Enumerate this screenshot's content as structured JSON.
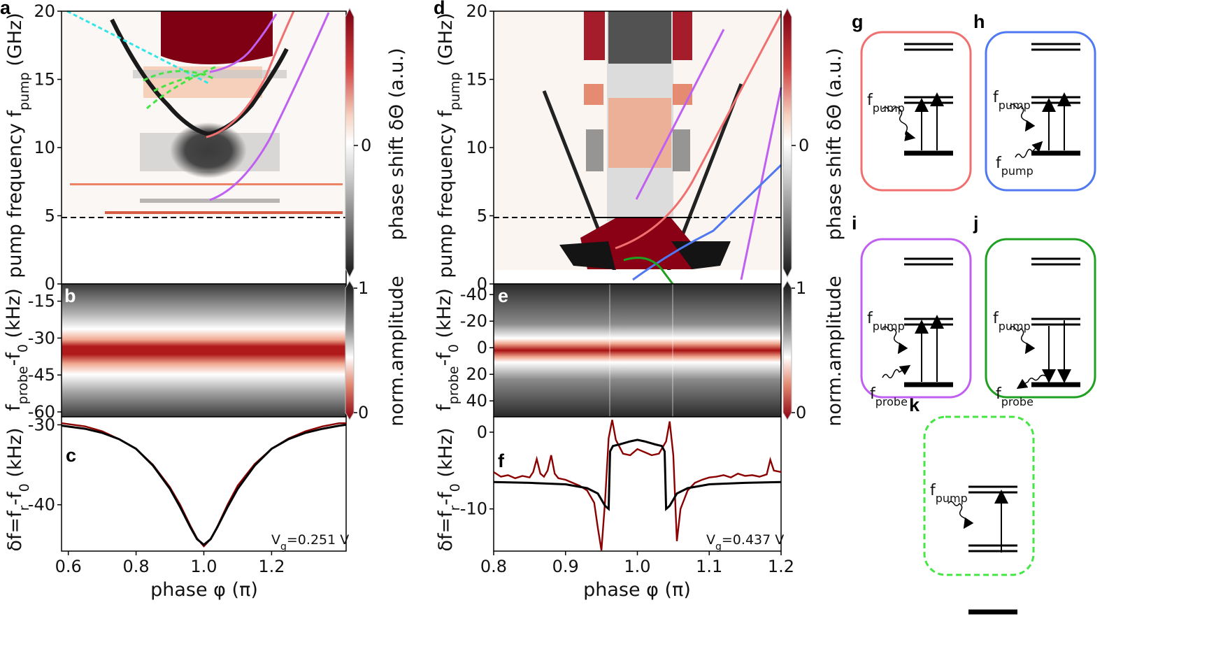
{
  "panels": {
    "a": "a",
    "b": "b",
    "c": "c",
    "d": "d",
    "e": "e",
    "f": "f",
    "g": "g",
    "h": "h",
    "i": "i",
    "j": "j",
    "k": "k"
  },
  "colorbars": {
    "phase": {
      "label": "phase shift δΘ (a.u.)",
      "tick": "0"
    },
    "amp": {
      "label": "norm.amplitude",
      "tick_top": "1",
      "tick_bottom": "0"
    }
  },
  "annotations": {
    "vg_left": "V",
    "vg_left_sub": "g",
    "vg_left_val": "=0.251 V",
    "vg_right": "V",
    "vg_right_sub": "g",
    "vg_right_val": "=0.437 V"
  },
  "axes_labels": {
    "pump_main": "pump frequency f",
    "pump_sub": "pump",
    "pump_unit": " (GHz)",
    "probe_main": "f",
    "probe_sub": "probe",
    "probe_mid": "-f",
    "probe_sub2": "0",
    "probe_unit": " (kHz)",
    "df_main": "δf=f",
    "df_sub": "r",
    "df_mid": "-f",
    "df_sub2": "0",
    "df_unit": " (kHz)",
    "phase": "phase φ (π)"
  },
  "level_labels": {
    "f": "f",
    "pump": "pump",
    "probe": "probe"
  },
  "colors": {
    "salmon": "#f07070",
    "violet": "#c060f0",
    "blue": "#5078f0",
    "green": "#20a020",
    "lime": "#44e644",
    "dark_red": "#8b0000",
    "cyan": "#33e6e6"
  },
  "chart_data": [
    {
      "panel": "a",
      "type": "heatmap",
      "xlim": [
        0.58,
        1.42
      ],
      "ylim": [
        0,
        20
      ],
      "ylabel": "pump frequency f_pump (GHz)",
      "yticks": [
        0,
        5,
        10,
        15,
        20
      ],
      "colorbar": "phase shift δΘ (a.u.)",
      "dashed_line_y": 5
    },
    {
      "panel": "b",
      "type": "heatmap",
      "xlim": [
        0.58,
        1.42
      ],
      "ylim": [
        -62,
        -8
      ],
      "ylabel": "f_probe-f_0 (kHz)",
      "yticks": [
        -15,
        -30,
        -45,
        -60
      ],
      "colorbar": "norm.amplitude",
      "resonance_center": [
        [
          0.58,
          -31.5
        ],
        [
          0.8,
          -33
        ],
        [
          1.0,
          -36
        ],
        [
          1.2,
          -33
        ],
        [
          1.42,
          -31.5
        ]
      ]
    },
    {
      "panel": "c",
      "type": "line",
      "xlim": [
        0.58,
        1.42
      ],
      "ylim": [
        -45.8,
        -29
      ],
      "xticks": [
        0.6,
        0.8,
        1.0,
        1.2
      ],
      "xticklabels": [
        "0.6",
        "0.8",
        "1.0",
        "1.2"
      ],
      "yticks": [
        -30,
        -40
      ],
      "yticklabels": [
        "-30",
        "-40"
      ],
      "xlabel": "phase φ (π)",
      "ylabel": "δf=f_r-f_0 (kHz)",
      "series": [
        {
          "color": "#8b0000",
          "style": "data",
          "x": [
            0.58,
            0.65,
            0.7,
            0.75,
            0.8,
            0.85,
            0.9,
            0.93,
            0.96,
            0.98,
            1.0,
            1.02,
            1.04,
            1.07,
            1.1,
            1.15,
            1.2,
            1.25,
            1.3,
            1.35,
            1.4,
            1.42
          ],
          "y": [
            -29.8,
            -30.2,
            -30.8,
            -31.8,
            -33.0,
            -35.0,
            -37.8,
            -40.0,
            -42.6,
            -44.2,
            -45.2,
            -44.3,
            -42.7,
            -40.0,
            -37.6,
            -34.9,
            -33.0,
            -31.7,
            -30.8,
            -30.2,
            -29.8,
            -29.8
          ]
        },
        {
          "color": "#000000",
          "style": "fit",
          "x": [
            0.58,
            0.65,
            0.7,
            0.75,
            0.8,
            0.85,
            0.9,
            0.93,
            0.96,
            0.98,
            1.0,
            1.02,
            1.04,
            1.07,
            1.1,
            1.15,
            1.2,
            1.25,
            1.3,
            1.35,
            1.4,
            1.42
          ],
          "y": [
            -30.1,
            -30.5,
            -31.0,
            -31.8,
            -33.0,
            -35.1,
            -38.0,
            -40.3,
            -42.8,
            -44.3,
            -45.0,
            -44.3,
            -42.8,
            -40.3,
            -38.0,
            -35.1,
            -33.0,
            -31.8,
            -31.0,
            -30.5,
            -30.1,
            -30.0
          ]
        }
      ]
    },
    {
      "panel": "d",
      "type": "heatmap",
      "xlim": [
        0.8,
        1.2
      ],
      "ylim": [
        0,
        20
      ],
      "ylabel": "pump frequency f_pump (GHz)",
      "yticks": [
        0,
        5,
        10,
        15,
        20
      ],
      "colorbar": "phase shift δΘ (a.u.)",
      "dashed_line_y": 5
    },
    {
      "panel": "e",
      "type": "heatmap",
      "xlim": [
        0.8,
        1.2
      ],
      "ylim": [
        52,
        -48
      ],
      "ylabel": "f_probe-f_0 (kHz)",
      "yticks": [
        -40,
        -20,
        0,
        20,
        40
      ],
      "colorbar": "norm.amplitude",
      "resonance_center": [
        [
          0.8,
          0
        ],
        [
          1.2,
          0
        ]
      ]
    },
    {
      "panel": "f",
      "type": "line",
      "xlim": [
        0.8,
        1.2
      ],
      "ylim": [
        -15.5,
        2
      ],
      "xticks": [
        0.8,
        0.9,
        1.0,
        1.1,
        1.2
      ],
      "xticklabels": [
        "0.8",
        "0.9",
        "1.0",
        "1.1",
        "1.2"
      ],
      "yticks": [
        0,
        -10
      ],
      "yticklabels": [
        "0",
        "-10"
      ],
      "xlabel": "phase φ (π)",
      "ylabel": "δf=f_r-f_0 (kHz)",
      "series": [
        {
          "color": "#8b0000",
          "style": "data",
          "x": [
            0.8,
            0.81,
            0.82,
            0.83,
            0.84,
            0.85,
            0.855,
            0.86,
            0.865,
            0.87,
            0.875,
            0.88,
            0.885,
            0.89,
            0.9,
            0.91,
            0.92,
            0.93,
            0.94,
            0.945,
            0.95,
            0.955,
            0.96,
            0.965,
            0.97,
            0.98,
            0.99,
            1.0,
            1.01,
            1.02,
            1.03,
            1.04,
            1.045,
            1.05,
            1.055,
            1.06,
            1.07,
            1.08,
            1.09,
            1.1,
            1.11,
            1.12,
            1.13,
            1.14,
            1.15,
            1.16,
            1.17,
            1.18,
            1.185,
            1.19,
            1.2
          ],
          "y": [
            -5.2,
            -5.8,
            -5.6,
            -6.0,
            -5.7,
            -5.9,
            -5.2,
            -3.5,
            -5.4,
            -5.8,
            -5.0,
            -3.0,
            -5.4,
            -6.0,
            -6.2,
            -6.6,
            -7.0,
            -7.6,
            -9.2,
            -12.5,
            -15.4,
            -9.0,
            -0.8,
            1.6,
            -1.0,
            -2.8,
            -3.0,
            -2.2,
            -2.6,
            -3.0,
            -2.8,
            -1.2,
            1.4,
            -3.0,
            -14.2,
            -10.0,
            -7.6,
            -6.6,
            -6.2,
            -5.9,
            -5.8,
            -5.6,
            -5.9,
            -5.4,
            -5.7,
            -5.6,
            -5.8,
            -5.5,
            -3.6,
            -5.0,
            -5.2
          ]
        },
        {
          "color": "#000000",
          "style": "fit",
          "x": [
            0.8,
            0.85,
            0.9,
            0.93,
            0.945,
            0.955,
            0.96,
            0.962,
            0.966,
            0.975,
            0.99,
            1.0,
            1.01,
            1.025,
            1.034,
            1.038,
            1.04,
            1.045,
            1.055,
            1.07,
            1.1,
            1.15,
            1.2
          ],
          "y": [
            -6.5,
            -6.6,
            -6.8,
            -7.3,
            -8.0,
            -9.6,
            -10.0,
            -2.5,
            -1.8,
            -1.6,
            -1.2,
            -1.0,
            -1.2,
            -1.6,
            -1.8,
            -2.5,
            -10.0,
            -9.6,
            -8.0,
            -7.3,
            -6.8,
            -6.6,
            -6.5
          ]
        }
      ]
    }
  ]
}
